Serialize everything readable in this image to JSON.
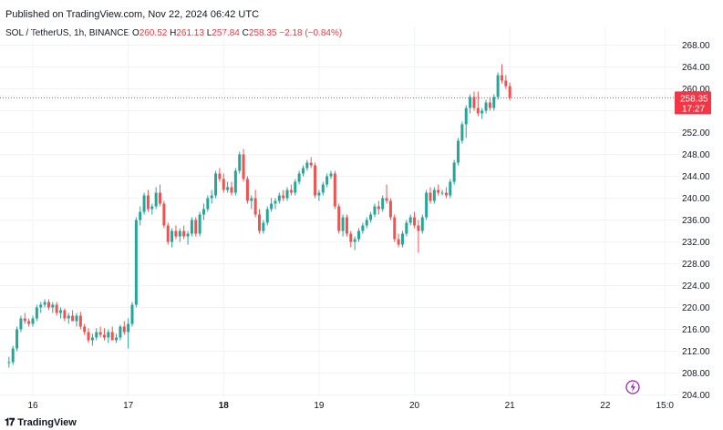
{
  "published": "Published on TradingView.com, Nov 22, 2024 06:42 UTC",
  "symbol": "SOL / TetherUS, 1h, BINANCE",
  "ohlc": {
    "o_label": "O",
    "o": "260.52",
    "h_label": "H",
    "h": "261.13",
    "l_label": "L",
    "l": "257.84",
    "c_label": "C",
    "c": "258.35",
    "change": "−2.18 (−0.84%)"
  },
  "last_price": {
    "price": "258.35",
    "countdown": "17:27"
  },
  "brand": "TradingView",
  "colors": {
    "up": "#26a69a",
    "down": "#ef5350",
    "price_tag": "#f23645",
    "grid": "#f0f3fa",
    "axis_text": "#131722"
  },
  "icons": {
    "logo": "tradingview-logo-icon",
    "lightning": "lightning-icon"
  },
  "chart_data": {
    "type": "candlestick",
    "y_ticks": [
      "268.00",
      "264.00",
      "260.00",
      "256.00",
      "252.00",
      "248.00",
      "244.00",
      "240.00",
      "236.00",
      "232.00",
      "228.00",
      "224.00",
      "220.00",
      "216.00",
      "212.00",
      "208.00",
      "204.00"
    ],
    "ylim": [
      202.5,
      270.5
    ],
    "x_ticks": [
      {
        "label": "16",
        "t": 0
      },
      {
        "label": "17",
        "t": 24
      },
      {
        "label": "18",
        "t": 48
      },
      {
        "label": "19",
        "t": 72
      },
      {
        "label": "20",
        "t": 96
      },
      {
        "label": "21",
        "t": 120
      },
      {
        "label": "22",
        "t": 144
      },
      {
        "label": "15:0",
        "t": 159
      }
    ],
    "grid": true,
    "ohlc": [
      [
        210,
        211,
        209,
        210
      ],
      [
        210,
        213,
        209.5,
        212.5
      ],
      [
        212.5,
        216.5,
        212,
        216
      ],
      [
        216,
        218.5,
        215.5,
        218
      ],
      [
        218,
        219,
        217,
        217.5
      ],
      [
        217.5,
        218,
        216.5,
        217
      ],
      [
        217,
        218.5,
        216.5,
        218
      ],
      [
        218,
        220.5,
        217.5,
        220
      ],
      [
        220,
        221,
        219,
        220.5
      ],
      [
        220.5,
        221.5,
        220,
        221
      ],
      [
        221,
        221.5,
        219.5,
        220
      ],
      [
        220,
        221,
        219,
        220.5
      ],
      [
        220.5,
        221,
        218.5,
        219
      ],
      [
        219,
        220,
        218,
        219.5
      ],
      [
        219.5,
        219.8,
        217.5,
        218
      ],
      [
        218,
        219,
        217,
        218.5
      ],
      [
        218.5,
        219.5,
        217.5,
        217.5
      ],
      [
        217.5,
        219,
        216.5,
        218.5
      ],
      [
        218.5,
        219.2,
        216,
        216.5
      ],
      [
        216.5,
        217,
        215,
        215.5
      ],
      [
        215.5,
        216.2,
        213.5,
        214
      ],
      [
        214,
        215.2,
        213,
        214.5
      ],
      [
        214.5,
        216.2,
        214,
        215.5
      ],
      [
        215.5,
        216.5,
        214.5,
        215
      ],
      [
        215,
        216.2,
        214,
        214.5
      ],
      [
        214.5,
        216,
        213.5,
        215.5
      ],
      [
        215.5,
        216.5,
        214,
        214
      ],
      [
        214,
        215.2,
        213.5,
        214.5
      ],
      [
        214.5,
        216.8,
        214,
        216.5
      ],
      [
        216.5,
        217.5,
        215,
        215.5
      ],
      [
        215.5,
        218,
        212.5,
        217
      ],
      [
        217,
        221,
        216.5,
        220.5
      ],
      [
        220.5,
        236.5,
        220,
        236
      ],
      [
        236,
        238.5,
        235,
        237.5
      ],
      [
        237.5,
        241,
        237,
        240.5
      ],
      [
        240.5,
        241.5,
        237.5,
        238
      ],
      [
        238,
        239,
        237,
        238.5
      ],
      [
        238.5,
        242,
        238,
        241
      ],
      [
        241,
        242.5,
        238.5,
        239
      ],
      [
        239,
        239.5,
        234.5,
        235
      ],
      [
        235,
        235.5,
        231.5,
        232
      ],
      [
        232,
        234.5,
        231,
        234
      ],
      [
        234,
        235,
        232.5,
        233
      ],
      [
        233,
        234.5,
        232,
        234
      ],
      [
        234,
        235,
        232.5,
        233
      ],
      [
        233,
        234,
        231.5,
        233.5
      ],
      [
        233.5,
        236.5,
        233,
        236
      ],
      [
        236,
        236.5,
        233,
        233.5
      ],
      [
        233.5,
        237.5,
        233,
        237
      ],
      [
        237,
        239,
        236,
        238
      ],
      [
        238,
        240.5,
        237.5,
        240
      ],
      [
        240,
        241.5,
        239,
        240.5
      ],
      [
        240.5,
        245,
        240,
        244.5
      ],
      [
        244.5,
        245.5,
        243,
        243.5
      ],
      [
        243.5,
        244.5,
        241,
        241.5
      ],
      [
        241.5,
        243,
        241,
        242
      ],
      [
        242,
        243,
        240.5,
        241
      ],
      [
        241,
        245.5,
        240.5,
        245
      ],
      [
        245,
        248.5,
        244.5,
        248
      ],
      [
        248,
        249,
        243,
        243.5
      ],
      [
        243.5,
        244,
        239,
        239.5
      ],
      [
        239.5,
        240.5,
        238,
        240
      ],
      [
        240,
        241.5,
        236.5,
        237
      ],
      [
        237,
        238,
        233.5,
        234
      ],
      [
        234,
        236,
        233.5,
        235.5
      ],
      [
        235.5,
        238.5,
        235,
        238
      ],
      [
        238,
        240,
        237.5,
        239
      ],
      [
        239,
        240,
        238,
        239.5
      ],
      [
        239.5,
        241,
        239,
        240.5
      ],
      [
        240.5,
        241.5,
        239.5,
        240
      ],
      [
        240,
        242,
        239.5,
        241.5
      ],
      [
        241.5,
        242.5,
        240.5,
        241
      ],
      [
        241,
        243.5,
        240.5,
        243
      ],
      [
        243,
        245,
        242.5,
        244.5
      ],
      [
        244.5,
        246,
        244,
        245.5
      ],
      [
        245.5,
        247,
        245,
        246.5
      ],
      [
        246.5,
        247.5,
        245.5,
        246
      ],
      [
        246,
        246.5,
        240,
        240.5
      ],
      [
        240.5,
        241.5,
        239.5,
        241
      ],
      [
        241,
        243,
        240.5,
        242.5
      ],
      [
        242.5,
        244.5,
        242,
        244
      ],
      [
        244,
        245,
        243.5,
        244.5
      ],
      [
        244.5,
        245,
        238,
        238.5
      ],
      [
        238.5,
        239,
        233.5,
        234
      ],
      [
        234,
        237,
        233,
        236.5
      ],
      [
        236.5,
        237,
        233,
        233.5
      ],
      [
        233.5,
        234,
        231,
        232
      ],
      [
        232,
        233,
        230.5,
        232.5
      ],
      [
        232.5,
        234.5,
        232,
        234
      ],
      [
        234,
        235.5,
        233.5,
        235
      ],
      [
        235,
        236.5,
        234.5,
        236
      ],
      [
        236,
        237.5,
        235.5,
        237
      ],
      [
        237,
        239,
        236.5,
        238.5
      ],
      [
        238.5,
        239.5,
        237,
        238
      ],
      [
        238,
        240.5,
        237.5,
        240
      ],
      [
        240,
        242.5,
        239,
        239.5
      ],
      [
        239.5,
        240,
        236,
        236.5
      ],
      [
        236.5,
        237,
        232,
        232.5
      ],
      [
        232.5,
        233.5,
        231,
        231.5
      ],
      [
        231.5,
        234,
        231,
        233.5
      ],
      [
        233.5,
        236,
        233,
        235.5
      ],
      [
        235.5,
        237,
        235,
        236.5
      ],
      [
        236.5,
        237.5,
        234.5,
        235
      ],
      [
        235,
        236,
        230,
        234
      ],
      [
        234,
        237,
        233.5,
        236.5
      ],
      [
        236.5,
        241.5,
        236,
        241
      ],
      [
        241,
        242,
        239,
        239.5
      ],
      [
        239.5,
        242,
        239,
        241.5
      ],
      [
        241.5,
        242.5,
        240.5,
        241
      ],
      [
        241,
        241.5,
        240.5,
        241
      ],
      [
        241,
        242,
        240,
        240.5
      ],
      [
        240.5,
        243.5,
        240,
        243
      ],
      [
        243,
        247,
        242.5,
        246.5
      ],
      [
        246.5,
        251,
        246,
        250.5
      ],
      [
        250.5,
        254,
        250,
        253.5
      ],
      [
        253.5,
        257,
        251,
        256.5
      ],
      [
        256.5,
        259,
        255.5,
        258.5
      ],
      [
        258.5,
        259.5,
        256,
        256.5
      ],
      [
        256.5,
        259.5,
        255,
        255.5
      ],
      [
        255.5,
        256.5,
        254.5,
        256
      ],
      [
        256,
        258,
        255.5,
        257.5
      ],
      [
        257.5,
        258.5,
        256,
        256.5
      ],
      [
        256.5,
        259,
        256,
        258.5
      ],
      [
        258.5,
        263,
        258,
        262.5
      ],
      [
        262.5,
        264.5,
        261,
        261.5
      ],
      [
        261.5,
        262.5,
        260,
        260.5
      ],
      [
        260.5,
        261.13,
        257.84,
        258.35
      ]
    ],
    "t_offsets": "first candle ≈ 4h before the '16' tick; one candle per hour"
  }
}
